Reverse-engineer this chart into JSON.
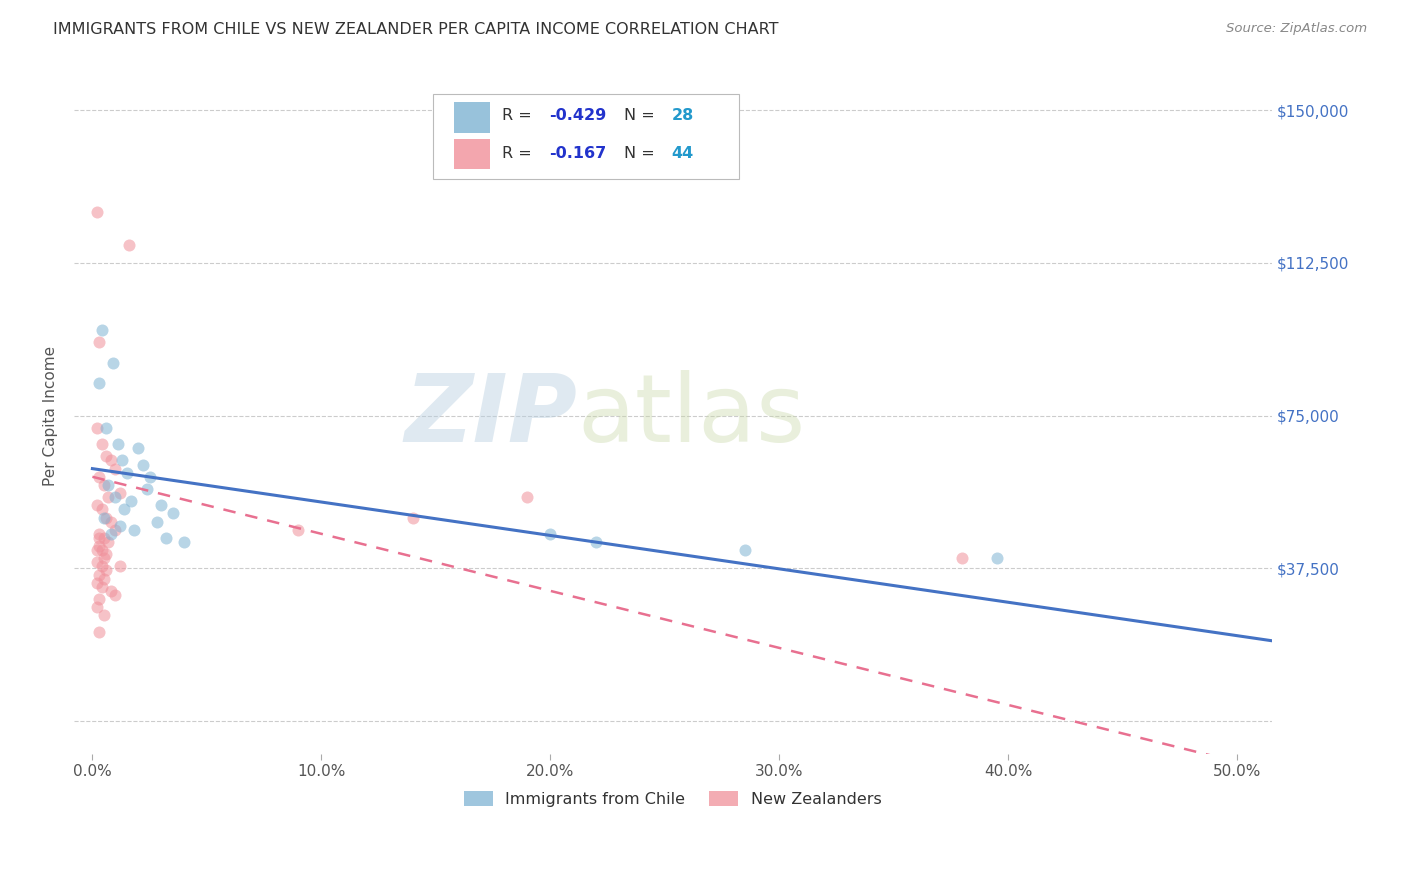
{
  "title": "IMMIGRANTS FROM CHILE VS NEW ZEALANDER PER CAPITA INCOME CORRELATION CHART",
  "source": "Source: ZipAtlas.com",
  "ylabel": "Per Capita Income",
  "xlabel_ticks": [
    "0.0%",
    "10.0%",
    "20.0%",
    "30.0%",
    "40.0%",
    "50.0%"
  ],
  "xlabel_vals": [
    0.0,
    0.1,
    0.2,
    0.3,
    0.4,
    0.5
  ],
  "yticks": [
    0,
    37500,
    75000,
    112500,
    150000
  ],
  "ytick_labels": [
    "",
    "$37,500",
    "$75,000",
    "$112,500",
    "$150,000"
  ],
  "watermark_zip": "ZIP",
  "watermark_atlas": "atlas",
  "legend_blue_R": "R = -0.429",
  "legend_blue_N": "N = 28",
  "legend_pink_R": "R =  -0.167",
  "legend_pink_N": "N = 44",
  "blue_scatter_color": "#7fb3d3",
  "pink_scatter_color": "#f0909a",
  "blue_line_color": "#4472c4",
  "pink_line_color": "#e87090",
  "dot_size": 75,
  "dot_alpha": 0.55,
  "background_color": "#ffffff",
  "grid_color": "#cccccc",
  "title_color": "#333333",
  "ytick_color": "#4472c4",
  "xtick_color": "#555555",
  "legend_color_R": "#2233cc",
  "legend_color_N": "#2299cc",
  "legend_black": "#333333",
  "blue_intercept": 62000,
  "blue_slope": -82000,
  "pink_intercept": 60000,
  "pink_slope": -140000,
  "chile_x": [
    0.004,
    0.009,
    0.003,
    0.006,
    0.011,
    0.013,
    0.015,
    0.02,
    0.022,
    0.025,
    0.007,
    0.01,
    0.017,
    0.03,
    0.035,
    0.005,
    0.012,
    0.018,
    0.008,
    0.014,
    0.04,
    0.2,
    0.22,
    0.285,
    0.395,
    0.024,
    0.028,
    0.032
  ],
  "chile_y": [
    96000,
    88000,
    83000,
    72000,
    68000,
    64000,
    61000,
    67000,
    63000,
    60000,
    58000,
    55000,
    54000,
    53000,
    51000,
    50000,
    48000,
    47000,
    46000,
    52000,
    44000,
    46000,
    44000,
    42000,
    40000,
    57000,
    49000,
    45000
  ],
  "nz_x": [
    0.002,
    0.003,
    0.016,
    0.002,
    0.004,
    0.006,
    0.008,
    0.01,
    0.003,
    0.005,
    0.007,
    0.012,
    0.002,
    0.004,
    0.006,
    0.008,
    0.01,
    0.003,
    0.005,
    0.007,
    0.002,
    0.004,
    0.006,
    0.003,
    0.005,
    0.002,
    0.004,
    0.006,
    0.012,
    0.003,
    0.005,
    0.002,
    0.004,
    0.008,
    0.01,
    0.003,
    0.002,
    0.005,
    0.003,
    0.003,
    0.38,
    0.09,
    0.14,
    0.19
  ],
  "nz_y": [
    125000,
    93000,
    117000,
    72000,
    68000,
    65000,
    64000,
    62000,
    60000,
    58000,
    55000,
    56000,
    53000,
    52000,
    50000,
    49000,
    47000,
    46000,
    45000,
    44000,
    42000,
    42000,
    41000,
    43000,
    40000,
    39000,
    38000,
    37000,
    38000,
    36000,
    35000,
    34000,
    33000,
    32000,
    31000,
    30000,
    28000,
    26000,
    22000,
    45000,
    40000,
    47000,
    50000,
    55000
  ]
}
